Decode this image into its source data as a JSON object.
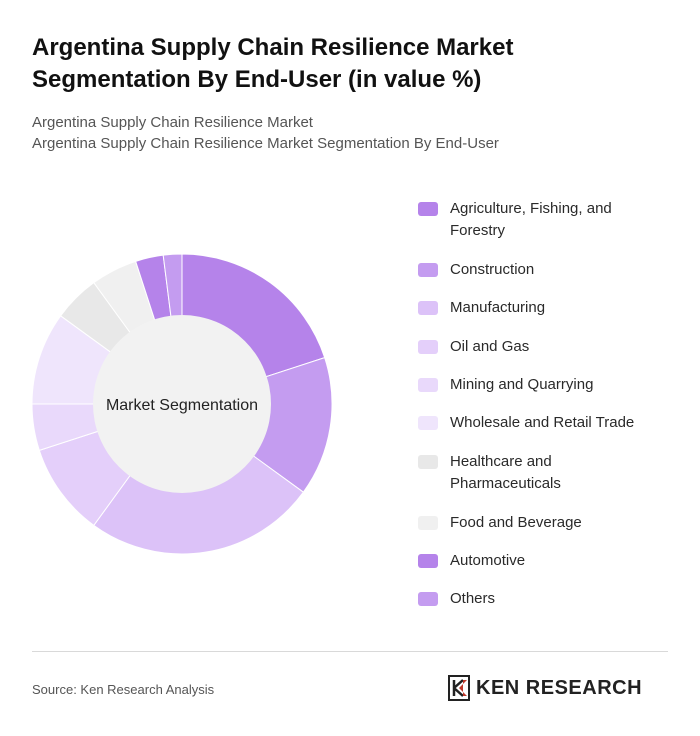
{
  "title": "Argentina Supply Chain Resilience Market Segmentation By End-User (in value %)",
  "subtitle_line1": "Argentina Supply Chain Resilience Market",
  "subtitle_line2": "Argentina Supply Chain Resilience Market Segmentation By End-User",
  "center_label": "Market Segmentation",
  "source": "Source: Ken Research Analysis",
  "brand": "KEN RESEARCH",
  "chart_data": {
    "type": "pie",
    "donut": true,
    "legend_position": "right",
    "categories": [
      "Agriculture, Fishing, and Forestry",
      "Construction",
      "Manufacturing",
      "Oil and Gas",
      "Mining and Quarrying",
      "Wholesale and Retail Trade",
      "Healthcare and Pharmaceuticals",
      "Food and Beverage",
      "Automotive",
      "Others"
    ],
    "values": [
      20,
      15,
      25,
      10,
      5,
      10,
      5,
      5,
      3,
      2
    ],
    "colors": [
      "#b583ea",
      "#c49cf0",
      "#dcc2f8",
      "#e4cffa",
      "#e9d9fb",
      "#efe5fc",
      "#e8e8e8",
      "#f0f0f0",
      "#b583ea",
      "#c49cf0"
    ]
  }
}
